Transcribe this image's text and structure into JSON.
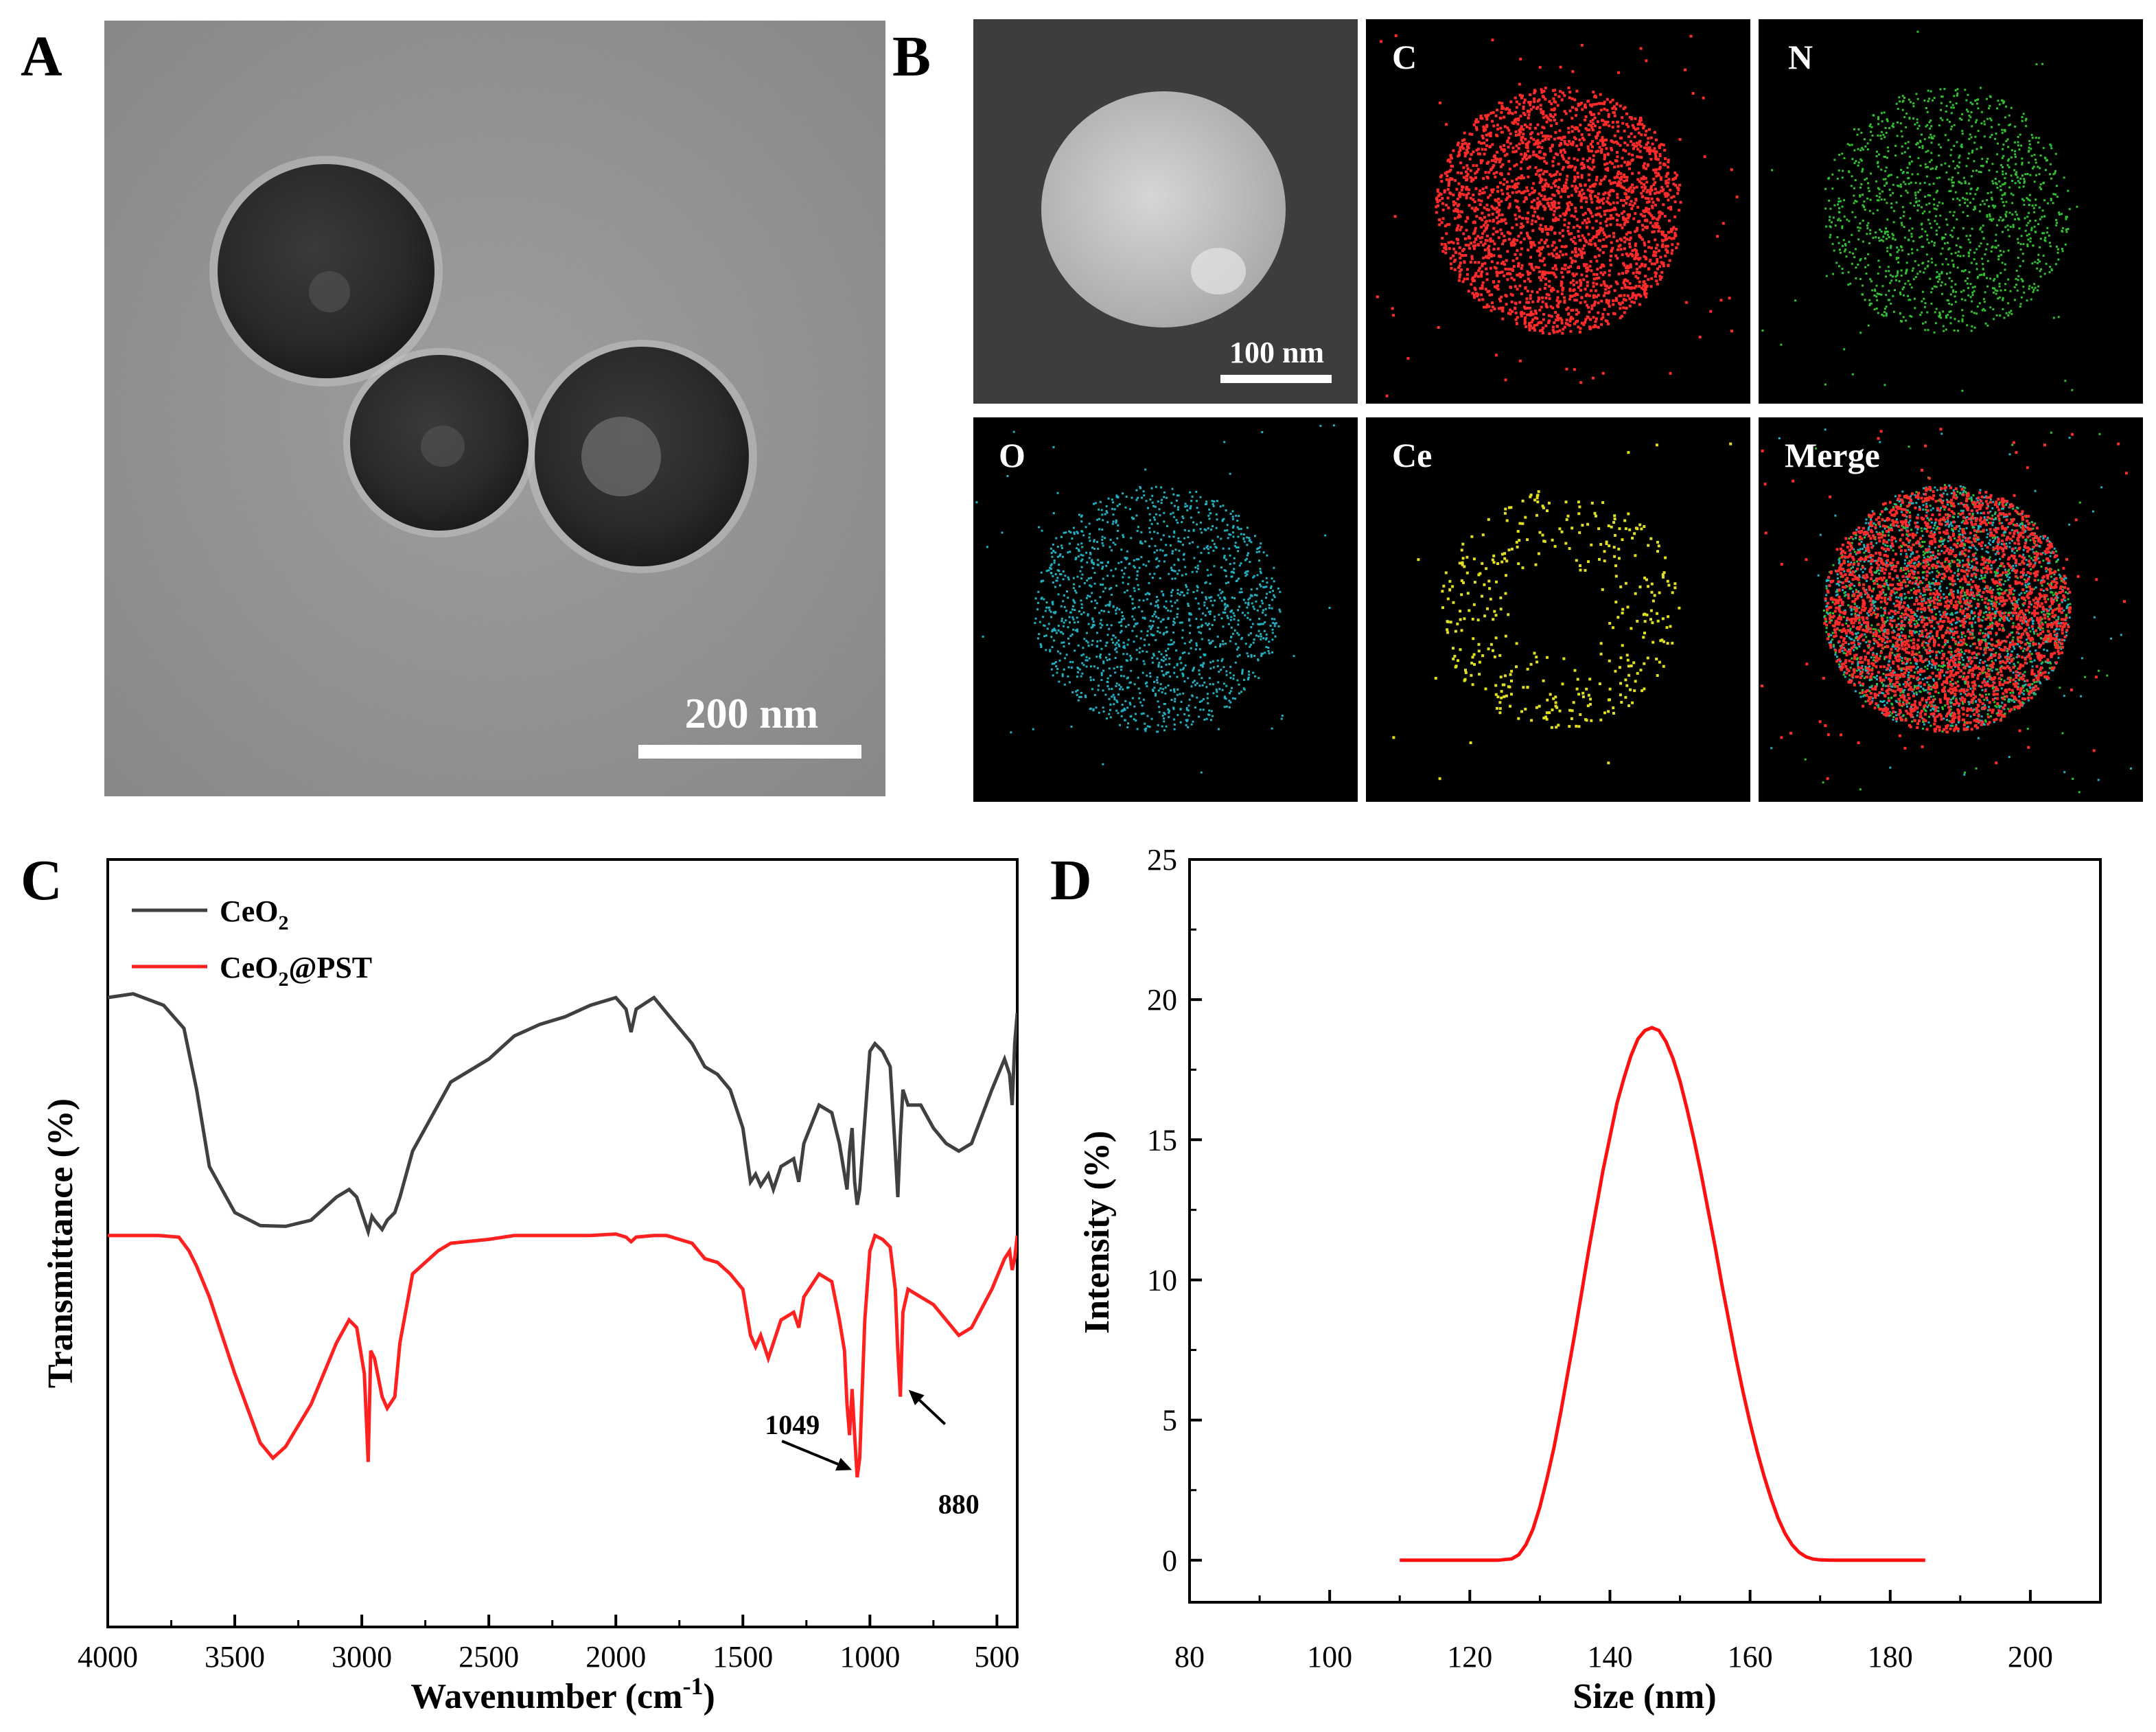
{
  "panels": {
    "a": {
      "letter": "A",
      "scale_bar": "200 nm"
    },
    "b": {
      "letter": "B",
      "scale_bar": "100 nm",
      "maps": [
        {
          "label": "",
          "color": "#d0d0d0"
        },
        {
          "label": "C",
          "color": "#ff2020"
        },
        {
          "label": "N",
          "color": "#20d020"
        },
        {
          "label": "O",
          "color": "#20b8c8"
        },
        {
          "label": "Ce",
          "color": "#e0e020"
        },
        {
          "label": "Merge",
          "color": "#d04040"
        }
      ]
    },
    "c": {
      "letter": "C"
    },
    "d": {
      "letter": "D"
    }
  },
  "chart_data": [
    {
      "panel": "C",
      "type": "line",
      "title": "",
      "xlabel": "Wavenumber (cm",
      "xlabel_sup": "-1",
      "xlabel_end": ")",
      "ylabel": "Transmittance (%)",
      "xlim": [
        4000,
        420
      ],
      "x_reversed": true,
      "xticks": [
        "4000",
        "3500",
        "3000",
        "2500",
        "2000",
        "1500",
        "1000",
        "500"
      ],
      "xtick_values": [
        4000,
        3500,
        3000,
        2500,
        2000,
        1500,
        1000,
        500
      ],
      "y_ticks_shown": false,
      "legend_position": "top-left",
      "series": [
        {
          "name": "CeO",
          "name_sub": "2",
          "name_suffix": "",
          "color": "#404040",
          "x": [
            4000,
            3900,
            3780,
            3700,
            3650,
            3600,
            3500,
            3400,
            3300,
            3200,
            3100,
            3050,
            3020,
            2990,
            2975,
            2960,
            2950,
            2920,
            2900,
            2870,
            2850,
            2800,
            2700,
            2650,
            2500,
            2400,
            2300,
            2200,
            2100,
            2000,
            1960,
            1940,
            1920,
            1850,
            1800,
            1700,
            1650,
            1600,
            1550,
            1500,
            1470,
            1450,
            1430,
            1400,
            1380,
            1350,
            1300,
            1280,
            1260,
            1200,
            1150,
            1120,
            1100,
            1090,
            1080,
            1070,
            1060,
            1050,
            1040,
            1020,
            1000,
            980,
            950,
            920,
            900,
            890,
            880,
            870,
            850,
            800,
            750,
            700,
            650,
            600,
            520,
            470,
            450,
            440,
            430,
            420
          ],
          "y": [
            82,
            82.5,
            81,
            78,
            70,
            60,
            54,
            52.3,
            52.2,
            53,
            56,
            57,
            56,
            53,
            51.5,
            53.5,
            53,
            51.8,
            53,
            54,
            56,
            62,
            68,
            71,
            74,
            77,
            78.5,
            79.5,
            81,
            82,
            80.5,
            77.5,
            80.5,
            82,
            80,
            76,
            73,
            72,
            70,
            65,
            58,
            59,
            57.5,
            59,
            57,
            60,
            61,
            58,
            63,
            68,
            67,
            63,
            59,
            57,
            62,
            65,
            58,
            55,
            57,
            66,
            75,
            76,
            75,
            73,
            62,
            56,
            64,
            70,
            68,
            68,
            65,
            63,
            62,
            63,
            70,
            74,
            72,
            68,
            76,
            80
          ]
        },
        {
          "name": "CeO",
          "name_sub": "2",
          "name_suffix": "@PST",
          "color": "#ff2020",
          "x": [
            4000,
            3900,
            3800,
            3720,
            3680,
            3650,
            3600,
            3500,
            3400,
            3350,
            3300,
            3200,
            3100,
            3050,
            3020,
            2990,
            2975,
            2965,
            2950,
            2920,
            2900,
            2870,
            2850,
            2800,
            2700,
            2650,
            2500,
            2400,
            2300,
            2200,
            2100,
            2000,
            1960,
            1940,
            1920,
            1850,
            1800,
            1700,
            1650,
            1600,
            1550,
            1500,
            1470,
            1450,
            1430,
            1400,
            1380,
            1350,
            1300,
            1280,
            1260,
            1200,
            1150,
            1120,
            1100,
            1090,
            1080,
            1070,
            1060,
            1050,
            1040,
            1020,
            1000,
            980,
            950,
            920,
            900,
            890,
            880,
            870,
            850,
            800,
            750,
            700,
            650,
            600,
            520,
            470,
            450,
            440,
            430,
            420
          ],
          "y": [
            51,
            51,
            51,
            50.8,
            49,
            47,
            43,
            33,
            24,
            22,
            23.5,
            29,
            37,
            40,
            39,
            33,
            21.5,
            36,
            35,
            30,
            28.5,
            30,
            37,
            46,
            49,
            50,
            50.5,
            51,
            51,
            51,
            51,
            51.2,
            50.8,
            50.2,
            50.8,
            51,
            51,
            50,
            48,
            47.5,
            46,
            44,
            38,
            36.5,
            38,
            35,
            37,
            40,
            41,
            39,
            43,
            46,
            45,
            40,
            36,
            29,
            25,
            31,
            25,
            19.5,
            22,
            40,
            49,
            51,
            50.5,
            49.5,
            44,
            36,
            30,
            41,
            44,
            43,
            42,
            40,
            38,
            39,
            44,
            48,
            49,
            46.5,
            48,
            51
          ]
        }
      ],
      "ylim": [
        0,
        100
      ],
      "annotations": [
        {
          "text": "1049",
          "at_x": 1049
        },
        {
          "text": "880",
          "at_x": 880
        }
      ]
    },
    {
      "panel": "D",
      "type": "line",
      "title": "",
      "xlabel": "Size (nm)",
      "ylabel": "Intensity (%)",
      "xlim": [
        80,
        210
      ],
      "ylim": [
        -1.5,
        25
      ],
      "xticks": [
        80,
        100,
        120,
        140,
        160,
        180,
        200
      ],
      "yticks": [
        0,
        5,
        10,
        15,
        20,
        25
      ],
      "series": [
        {
          "name": "",
          "color": "#ff1010",
          "x": [
            110,
            114,
            118,
            122,
            124,
            126,
            127,
            128,
            129,
            130,
            131,
            132,
            133,
            134,
            135,
            136,
            137,
            138,
            139,
            140,
            141,
            142,
            143,
            144,
            145,
            146,
            147,
            148,
            149,
            150,
            151,
            152,
            153,
            154,
            155,
            156,
            157,
            158,
            159,
            160,
            161,
            162,
            163,
            164,
            165,
            166,
            167,
            168,
            169,
            170,
            172,
            175,
            180,
            185
          ],
          "y": [
            0,
            0,
            0,
            0,
            0,
            0.05,
            0.2,
            0.55,
            1.1,
            1.9,
            2.9,
            4.0,
            5.3,
            6.7,
            8.1,
            9.6,
            11.1,
            12.5,
            13.9,
            15.1,
            16.3,
            17.2,
            18.0,
            18.6,
            18.9,
            19.0,
            18.9,
            18.5,
            17.9,
            17.1,
            16.1,
            15.0,
            13.8,
            12.5,
            11.2,
            9.8,
            8.5,
            7.2,
            6.0,
            4.9,
            3.9,
            3.0,
            2.2,
            1.5,
            0.95,
            0.55,
            0.28,
            0.12,
            0.04,
            0.01,
            0,
            0,
            0,
            0
          ]
        }
      ]
    }
  ]
}
